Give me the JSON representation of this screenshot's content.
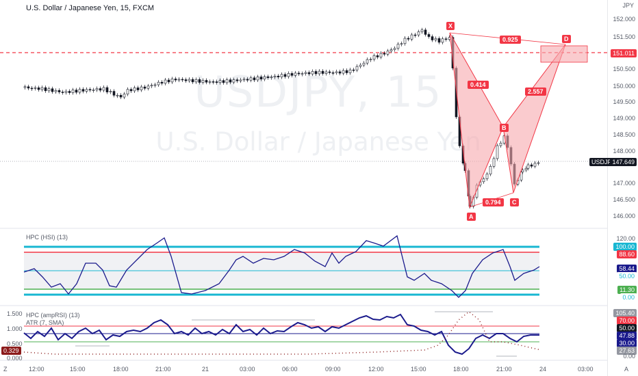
{
  "chart_title": "U.S. Dollar / Japanese Yen, 15, FXCM",
  "watermark": {
    "symbol": "USDJPY, 15",
    "name": "U.S. Dollar / Japanese Yen"
  },
  "price_axis": {
    "currency": "JPY",
    "ticks": [
      "152.000",
      "151.500",
      "150.500",
      "150.000",
      "149.500",
      "149.000",
      "148.500",
      "148.000",
      "147.000",
      "146.500",
      "146.000"
    ]
  },
  "price_tags": {
    "level": "151.011",
    "symbol": "USDJPY",
    "last": "147.649"
  },
  "pattern": {
    "points": [
      "X",
      "A",
      "B",
      "C",
      "D"
    ],
    "ratios": {
      "xd": "0.925",
      "xb": "0.414",
      "bd": "2.557",
      "ac": "0.794"
    }
  },
  "hsi_panel": {
    "label": "HPC (HSI) (13)",
    "tags": [
      "120.00",
      "100.00",
      "88.60",
      "58.44",
      "50.00",
      "11.30",
      "0.00"
    ]
  },
  "amprsi_panel": {
    "label": "HPC (ampRSI) (13)",
    "sub_label": "ATR (7, SMA)",
    "left_ticks": [
      "1.500",
      "1.000",
      "0.500",
      "0.000"
    ],
    "left_tag": "0.329",
    "tags": [
      "105.40",
      "70.00",
      "50.00",
      "47.88",
      "30.00",
      "27.63",
      "0.00"
    ]
  },
  "time_axis": {
    "labels": [
      "12:00",
      "15:00",
      "18:00",
      "21:00",
      "21",
      "03:00",
      "06:00",
      "09:00",
      "12:00",
      "15:00",
      "18:00",
      "21:00",
      "24",
      "03:00"
    ],
    "corner_left": "Z",
    "corner_right": "A"
  },
  "colors": {
    "pattern_fill": "#f7a8ae",
    "pattern_red": "#f23645",
    "hsi_line": "#1a1a8c",
    "cyan": "#18b7d2",
    "green": "#4caf50"
  }
}
